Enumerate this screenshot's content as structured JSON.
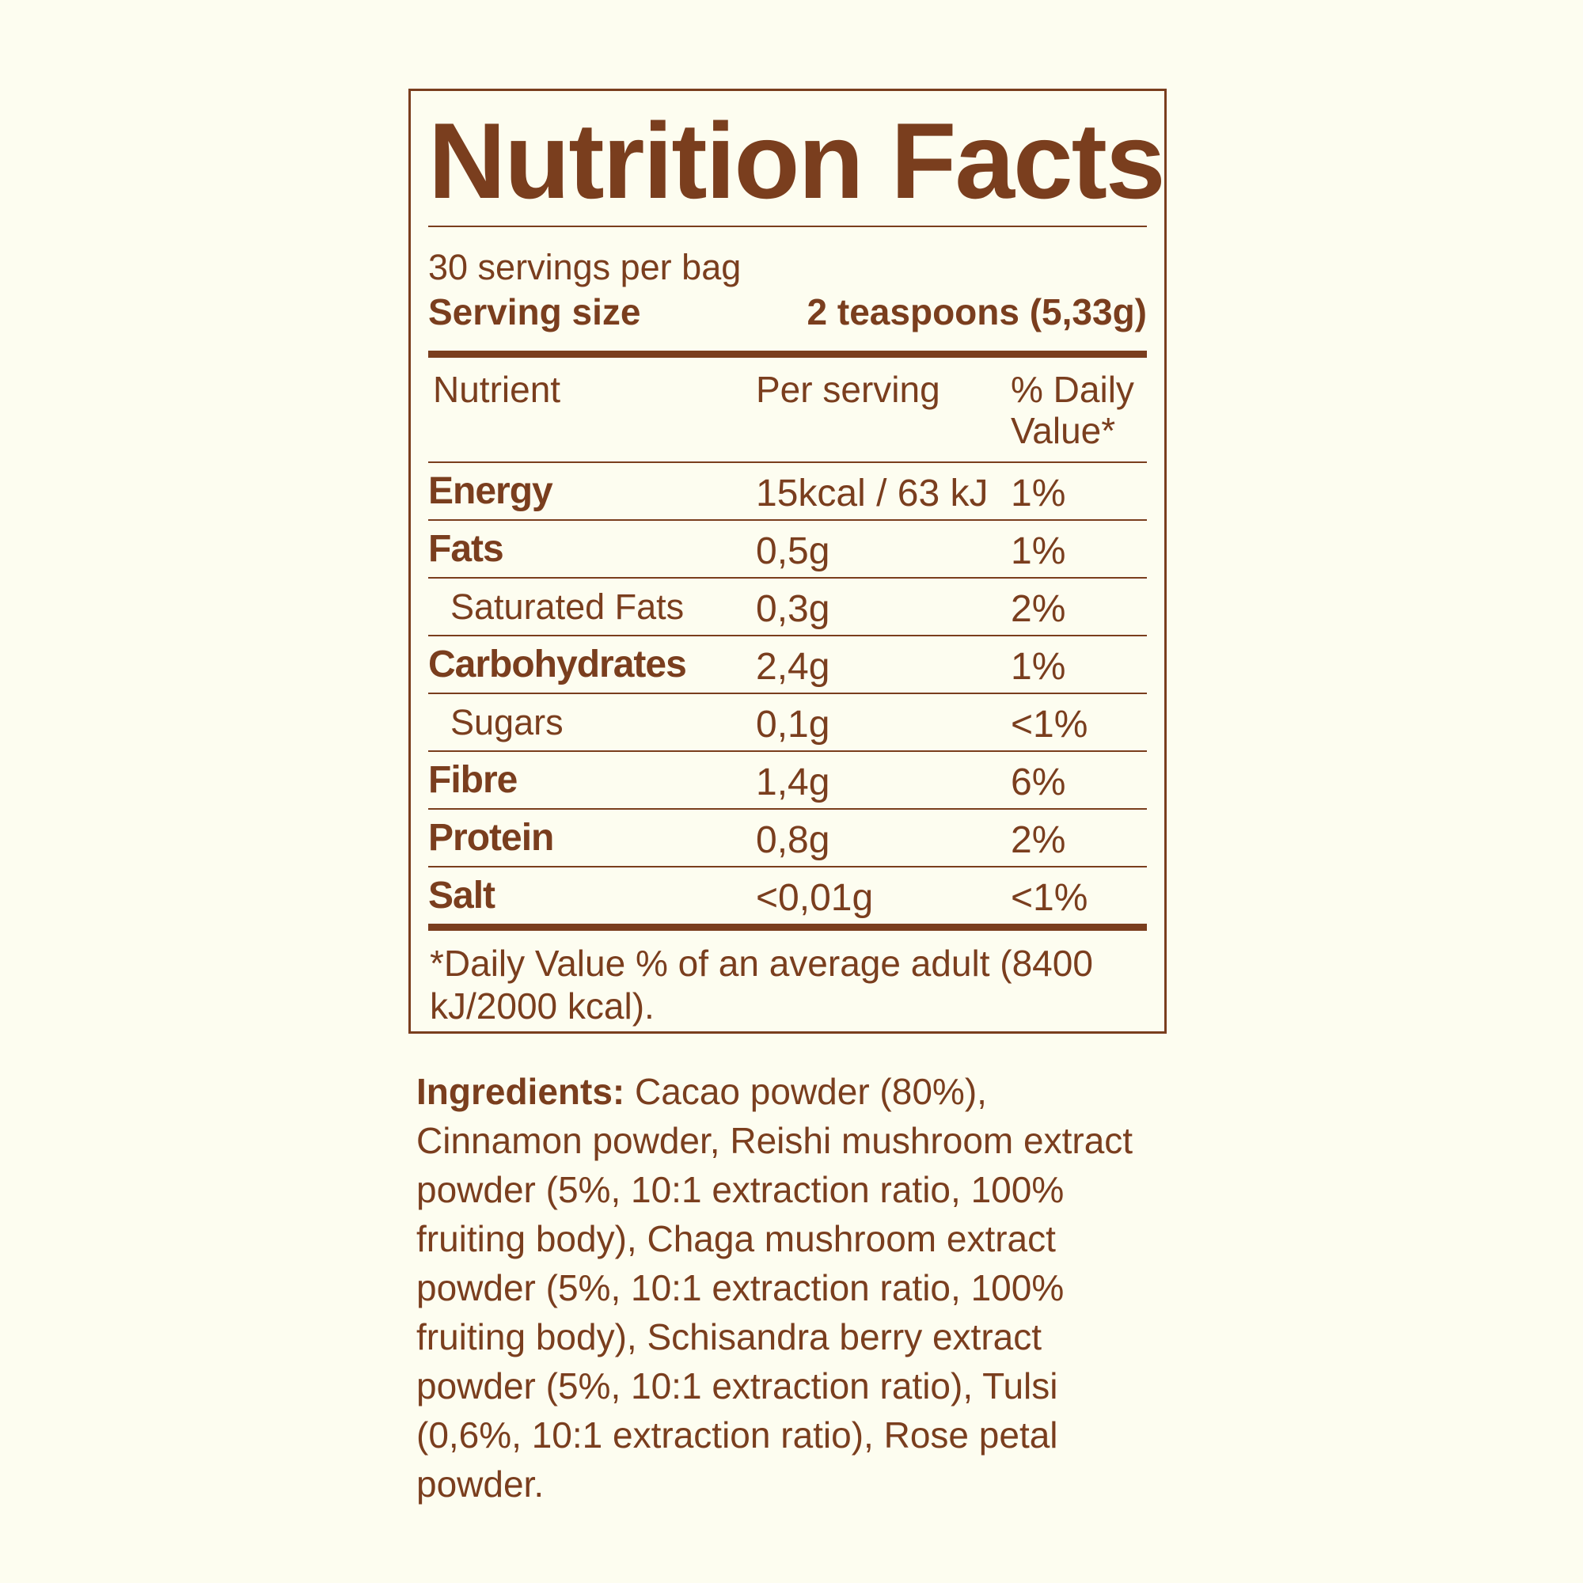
{
  "label": {
    "title": "Nutrition Facts",
    "servings_per_container": "30 servings per bag",
    "serving_size_label": "Serving size",
    "serving_size_value": "2 teaspoons (5,33g)",
    "headers": {
      "nutrient": "Nutrient",
      "per_serving": "Per serving",
      "daily_value": "% Daily Value*"
    },
    "rows": [
      {
        "name": "Energy",
        "amount": "15kcal / 63 kJ",
        "dv": "1%"
      },
      {
        "name": "Fats",
        "amount": "0,5g",
        "dv": "1%"
      },
      {
        "name": "Saturated Fats",
        "amount": "0,3g",
        "dv": "2%"
      },
      {
        "name": "Carbohydrates",
        "amount": "2,4g",
        "dv": "1%"
      },
      {
        "name": "Sugars",
        "amount": "0,1g",
        "dv": "<1%"
      },
      {
        "name": "Fibre",
        "amount": "1,4g",
        "dv": "6%"
      },
      {
        "name": "Protein",
        "amount": "0,8g",
        "dv": "2%"
      },
      {
        "name": "Salt",
        "amount": "<0,01g",
        "dv": "<1%"
      }
    ],
    "footnote": "*Daily Value % of an average adult (8400 kJ/2000 kcal)."
  },
  "ingredients": {
    "label": "Ingredients:",
    "text": " Cacao powder (80%), Cinnamon powder, Reishi mushroom extract powder (5%, 10:1 extraction ratio, 100% fruiting body), Chaga mushroom extract powder (5%, 10:1 extraction ratio, 100% fruiting body), Schisandra berry extract powder (5%, 10:1 extraction ratio), Tulsi (0,6%, 10:1 extraction ratio), Rose petal powder."
  },
  "colors": {
    "background": "#fdfdf0",
    "text": "#7a3e1e"
  }
}
